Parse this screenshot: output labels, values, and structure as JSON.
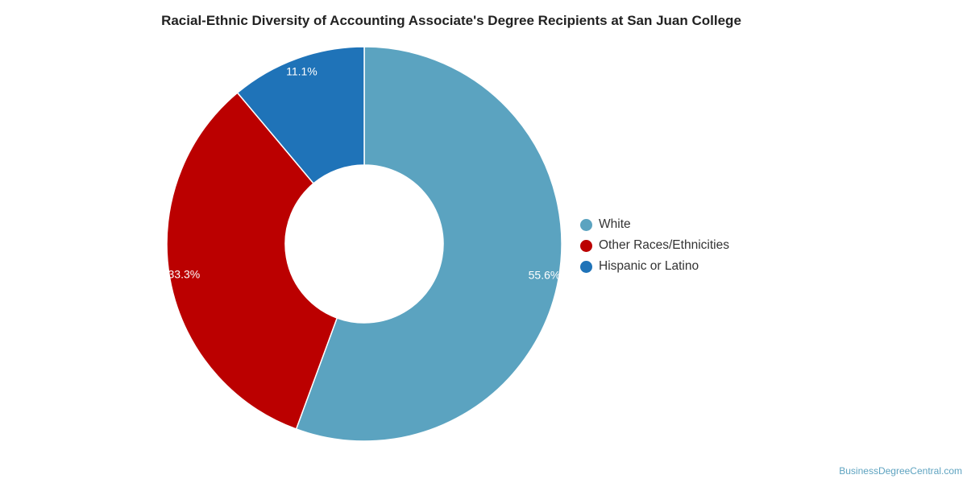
{
  "chart_data": {
    "type": "pie",
    "title": "Racial-Ethnic Diversity of Accounting Associate's Degree Recipients at San Juan College",
    "donut": true,
    "legend_position": "right",
    "slices": [
      {
        "name": "White",
        "value": 55.6,
        "label": "55.6%",
        "color": "#5ba3c0"
      },
      {
        "name": "Other Races/Ethnicities",
        "value": 33.3,
        "label": "33.3%",
        "color": "#bb0000"
      },
      {
        "name": "Hispanic or Latino",
        "value": 11.1,
        "label": "11.1%",
        "color": "#1f73b8"
      }
    ]
  },
  "watermark": "BusinessDegreeCentral.com"
}
